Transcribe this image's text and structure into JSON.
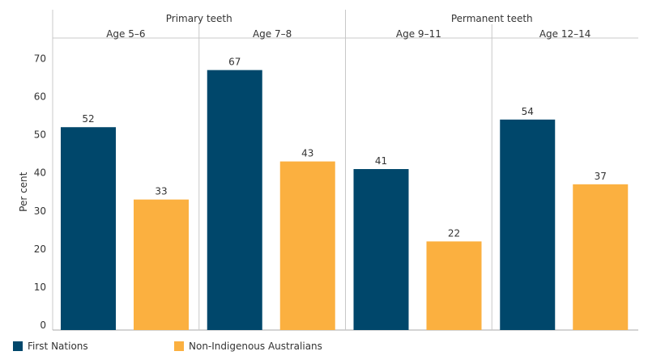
{
  "chart_data": {
    "type": "bar",
    "ylabel": "Per cent",
    "ylim": [
      0,
      70
    ],
    "yticks": [
      0,
      10,
      20,
      30,
      40,
      50,
      60,
      70
    ],
    "groups": [
      {
        "label": "Primary teeth",
        "categories": [
          "Age 5–6",
          "Age 7–8"
        ]
      },
      {
        "label": "Permanent teeth",
        "categories": [
          "Age 9–11",
          "Age 12–14"
        ]
      }
    ],
    "categories": [
      "Age 5–6",
      "Age 7–8",
      "Age 9–11",
      "Age 12–14"
    ],
    "series": [
      {
        "name": "First Nations",
        "color": "#00476b",
        "values": [
          52,
          67,
          41,
          54
        ]
      },
      {
        "name": "Non-Indigenous Australians",
        "color": "#fbb040",
        "values": [
          33,
          43,
          22,
          37
        ]
      }
    ],
    "grid": false,
    "legend_position": "bottom-left"
  }
}
